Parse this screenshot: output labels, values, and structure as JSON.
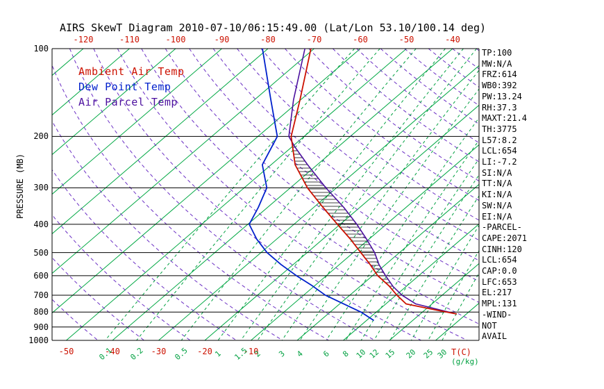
{
  "title": "AIRS SkewT Diagram 2010-07-10/06:15:49.00 (Lat/Lon 53.10/100.14 deg)",
  "colors": {
    "ambient": "#cc1100",
    "dew_point": "#0020cc",
    "parcel": "#4b0f9e",
    "isotherm_green": "#00a843",
    "adiabat_purple": "#6b2fc4",
    "axis_black": "#000000",
    "temp_label_red": "#cc1100",
    "mixing_label_green": "#00a040"
  },
  "y_axis": {
    "label": "PRESSURE (MB)",
    "ticks": [
      100,
      200,
      300,
      400,
      500,
      600,
      700,
      800,
      900,
      1000
    ]
  },
  "top_axis": {
    "ticks": [
      -120,
      -110,
      -100,
      -90,
      -80,
      -70,
      -60,
      -50,
      -40
    ]
  },
  "bottom_axis": {
    "temp_ticks": [
      -50,
      -40,
      -30,
      -20,
      -10
    ],
    "temp_unit": "T(C)",
    "mixing_ticks": [
      "0.1",
      "0.2",
      "0.5",
      "1",
      "1.5",
      "2",
      "3",
      "4",
      "6",
      "8",
      "10",
      "12",
      "15",
      "20",
      "25",
      "30"
    ],
    "mixing_unit": "(g/kg)"
  },
  "legend": [
    {
      "label": "Ambient Air Temp",
      "series": "ambient"
    },
    {
      "label": "Dew Point Temp",
      "series": "dew_point"
    },
    {
      "label": "Air Parcel Temp",
      "series": "parcel"
    }
  ],
  "stats": [
    "TP:100",
    "MW:N/A",
    "FRZ:614",
    "WB0:392",
    "PW:13.24",
    "RH:37.3",
    "MAXT:21.4",
    "TH:3775",
    "L57:8.2",
    "LCL:654",
    "LI:-7.2",
    "SI:N/A",
    "TT:N/A",
    "KI:N/A",
    "SW:N/A",
    "EI:N/A",
    "-PARCEL-",
    "CAPE:2071",
    "CINH:120",
    "LCL:654",
    "CAP:0.0",
    "LFC:653",
    "EL:217",
    "MPL:131",
    "-WIND-",
    "NOT",
    "AVAIL"
  ],
  "chart_data": {
    "type": "line",
    "title": "AIRS SkewT Diagram 2010-07-10/06:15:49.00 (Lat/Lon 53.10/100.14 deg)",
    "xlabel": "Temperature (C), skewed",
    "ylabel": "Pressure (MB), log scale",
    "pressure_lines_mb": [
      100,
      200,
      300,
      400,
      500,
      600,
      700,
      800,
      900,
      1000
    ],
    "isotherms_c": {
      "from": -180,
      "to": 40,
      "step": 10
    },
    "dry_adiabats_k": {
      "from": 220,
      "to": 460,
      "step": 10
    },
    "mixing_ratio_lines_g_kg": [
      0.1,
      0.2,
      0.5,
      1,
      1.5,
      2,
      3,
      4,
      6,
      8,
      10,
      12,
      15,
      20,
      25,
      30
    ],
    "series": [
      {
        "name": "Ambient Air Temp",
        "series": "ambient",
        "points_p_mb_t_c": [
          [
            812,
            27.9
          ],
          [
            780,
            20.9
          ],
          [
            750,
            14.4
          ],
          [
            700,
            10.2
          ],
          [
            650,
            6.1
          ],
          [
            600,
            1.1
          ],
          [
            550,
            -3.3
          ],
          [
            500,
            -8.4
          ],
          [
            450,
            -14.0
          ],
          [
            400,
            -20.6
          ],
          [
            350,
            -28.0
          ],
          [
            300,
            -36.3
          ],
          [
            250,
            -44.8
          ],
          [
            200,
            -52.8
          ],
          [
            150,
            -60.1
          ],
          [
            100,
            -70.7
          ]
        ]
      },
      {
        "name": "Dew Point Temp",
        "series": "dew_point",
        "points_p_mb_t_c": [
          [
            855,
            11.6
          ],
          [
            800,
            6.7
          ],
          [
            750,
            0.9
          ],
          [
            700,
            -5.3
          ],
          [
            650,
            -10.5
          ],
          [
            600,
            -16.5
          ],
          [
            550,
            -22.6
          ],
          [
            500,
            -28.7
          ],
          [
            450,
            -34.3
          ],
          [
            400,
            -39.7
          ],
          [
            350,
            -42.0
          ],
          [
            300,
            -45.1
          ],
          [
            250,
            -51.9
          ],
          [
            200,
            -55.8
          ],
          [
            150,
            -66.4
          ],
          [
            100,
            -81.2
          ]
        ]
      },
      {
        "name": "Air Parcel Temp",
        "series": "parcel",
        "points_p_mb_t_c": [
          [
            812,
            27.9
          ],
          [
            750,
            16.5
          ],
          [
            700,
            11.3
          ],
          [
            654,
            7.2
          ],
          [
            600,
            2.8
          ],
          [
            550,
            -1.4
          ],
          [
            500,
            -5.4
          ],
          [
            450,
            -10.5
          ],
          [
            400,
            -16.4
          ],
          [
            350,
            -23.5
          ],
          [
            300,
            -32.3
          ],
          [
            250,
            -42.1
          ],
          [
            217,
            -49.4
          ],
          [
            200,
            -53.3
          ],
          [
            150,
            -61.5
          ],
          [
            100,
            -72.0
          ]
        ]
      }
    ],
    "cape_hatch_between_mb": [
      217,
      653
    ]
  }
}
